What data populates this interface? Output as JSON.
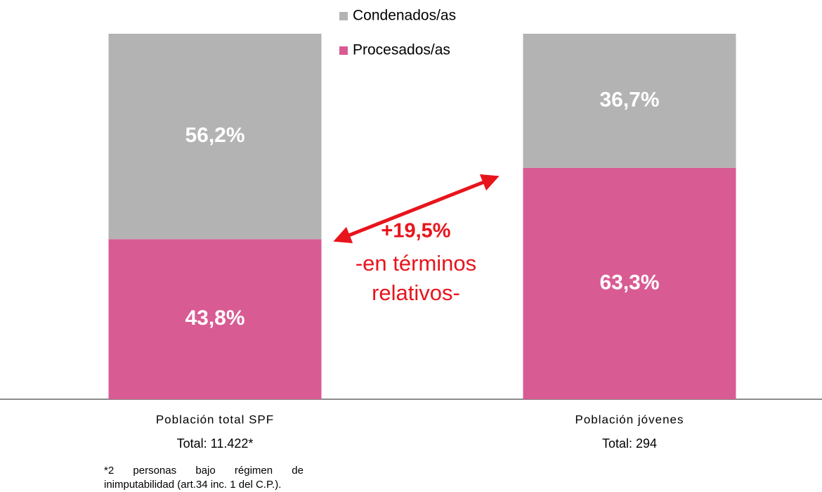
{
  "chart_data": {
    "type": "stacked_bar",
    "categories": [
      "Población total SPF",
      "Población jóvenes"
    ],
    "category_notes": [
      "Total: 11.422*",
      "Total: 294"
    ],
    "series": [
      {
        "name": "Procesados/as",
        "color": "#d95b93",
        "values": [
          43.8,
          63.3
        ],
        "value_labels": [
          "43,8%",
          "63,3%"
        ]
      },
      {
        "name": "Condenados/as",
        "color": "#b3b3b3",
        "values": [
          56.2,
          36.7
        ],
        "value_labels": [
          "56,2%",
          "36,7%"
        ]
      }
    ],
    "ylim": [
      0,
      100
    ],
    "legend": "top",
    "annotations": [
      "+19,5%",
      "-en términos",
      "relativos-"
    ],
    "footnote": "*2 personas bajo régimen de inimputabilidad (art.34 inc. 1 del C.P.)."
  }
}
